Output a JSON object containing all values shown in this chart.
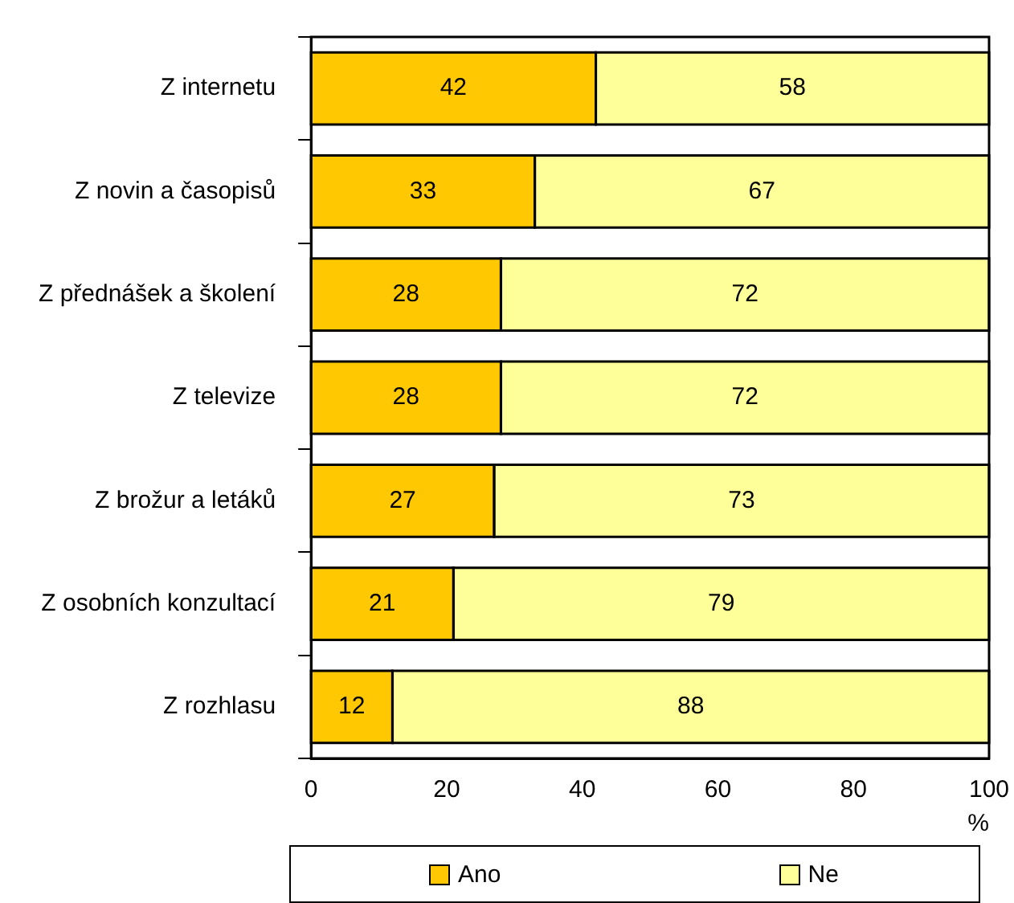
{
  "chart_data": {
    "type": "bar",
    "orientation": "horizontal",
    "stacked": true,
    "categories": [
      "Z internetu",
      "Z novin a časopisů",
      "Z přednášek a školení",
      "Z televize",
      "Z brožur a letáků",
      "Z osobních konzultací",
      "Z rozhlasu"
    ],
    "series": [
      {
        "name": "Ano",
        "color": "#ffc800",
        "values": [
          42,
          33,
          28,
          28,
          27,
          21,
          12
        ]
      },
      {
        "name": "Ne",
        "color": "#ffff99",
        "values": [
          58,
          67,
          72,
          72,
          73,
          79,
          88
        ]
      }
    ],
    "xlim": [
      0,
      100
    ],
    "xticks": [
      0,
      20,
      40,
      60,
      80,
      100
    ],
    "xlabel": "%",
    "data_labels": true,
    "grid": false,
    "legend": "bottom"
  }
}
